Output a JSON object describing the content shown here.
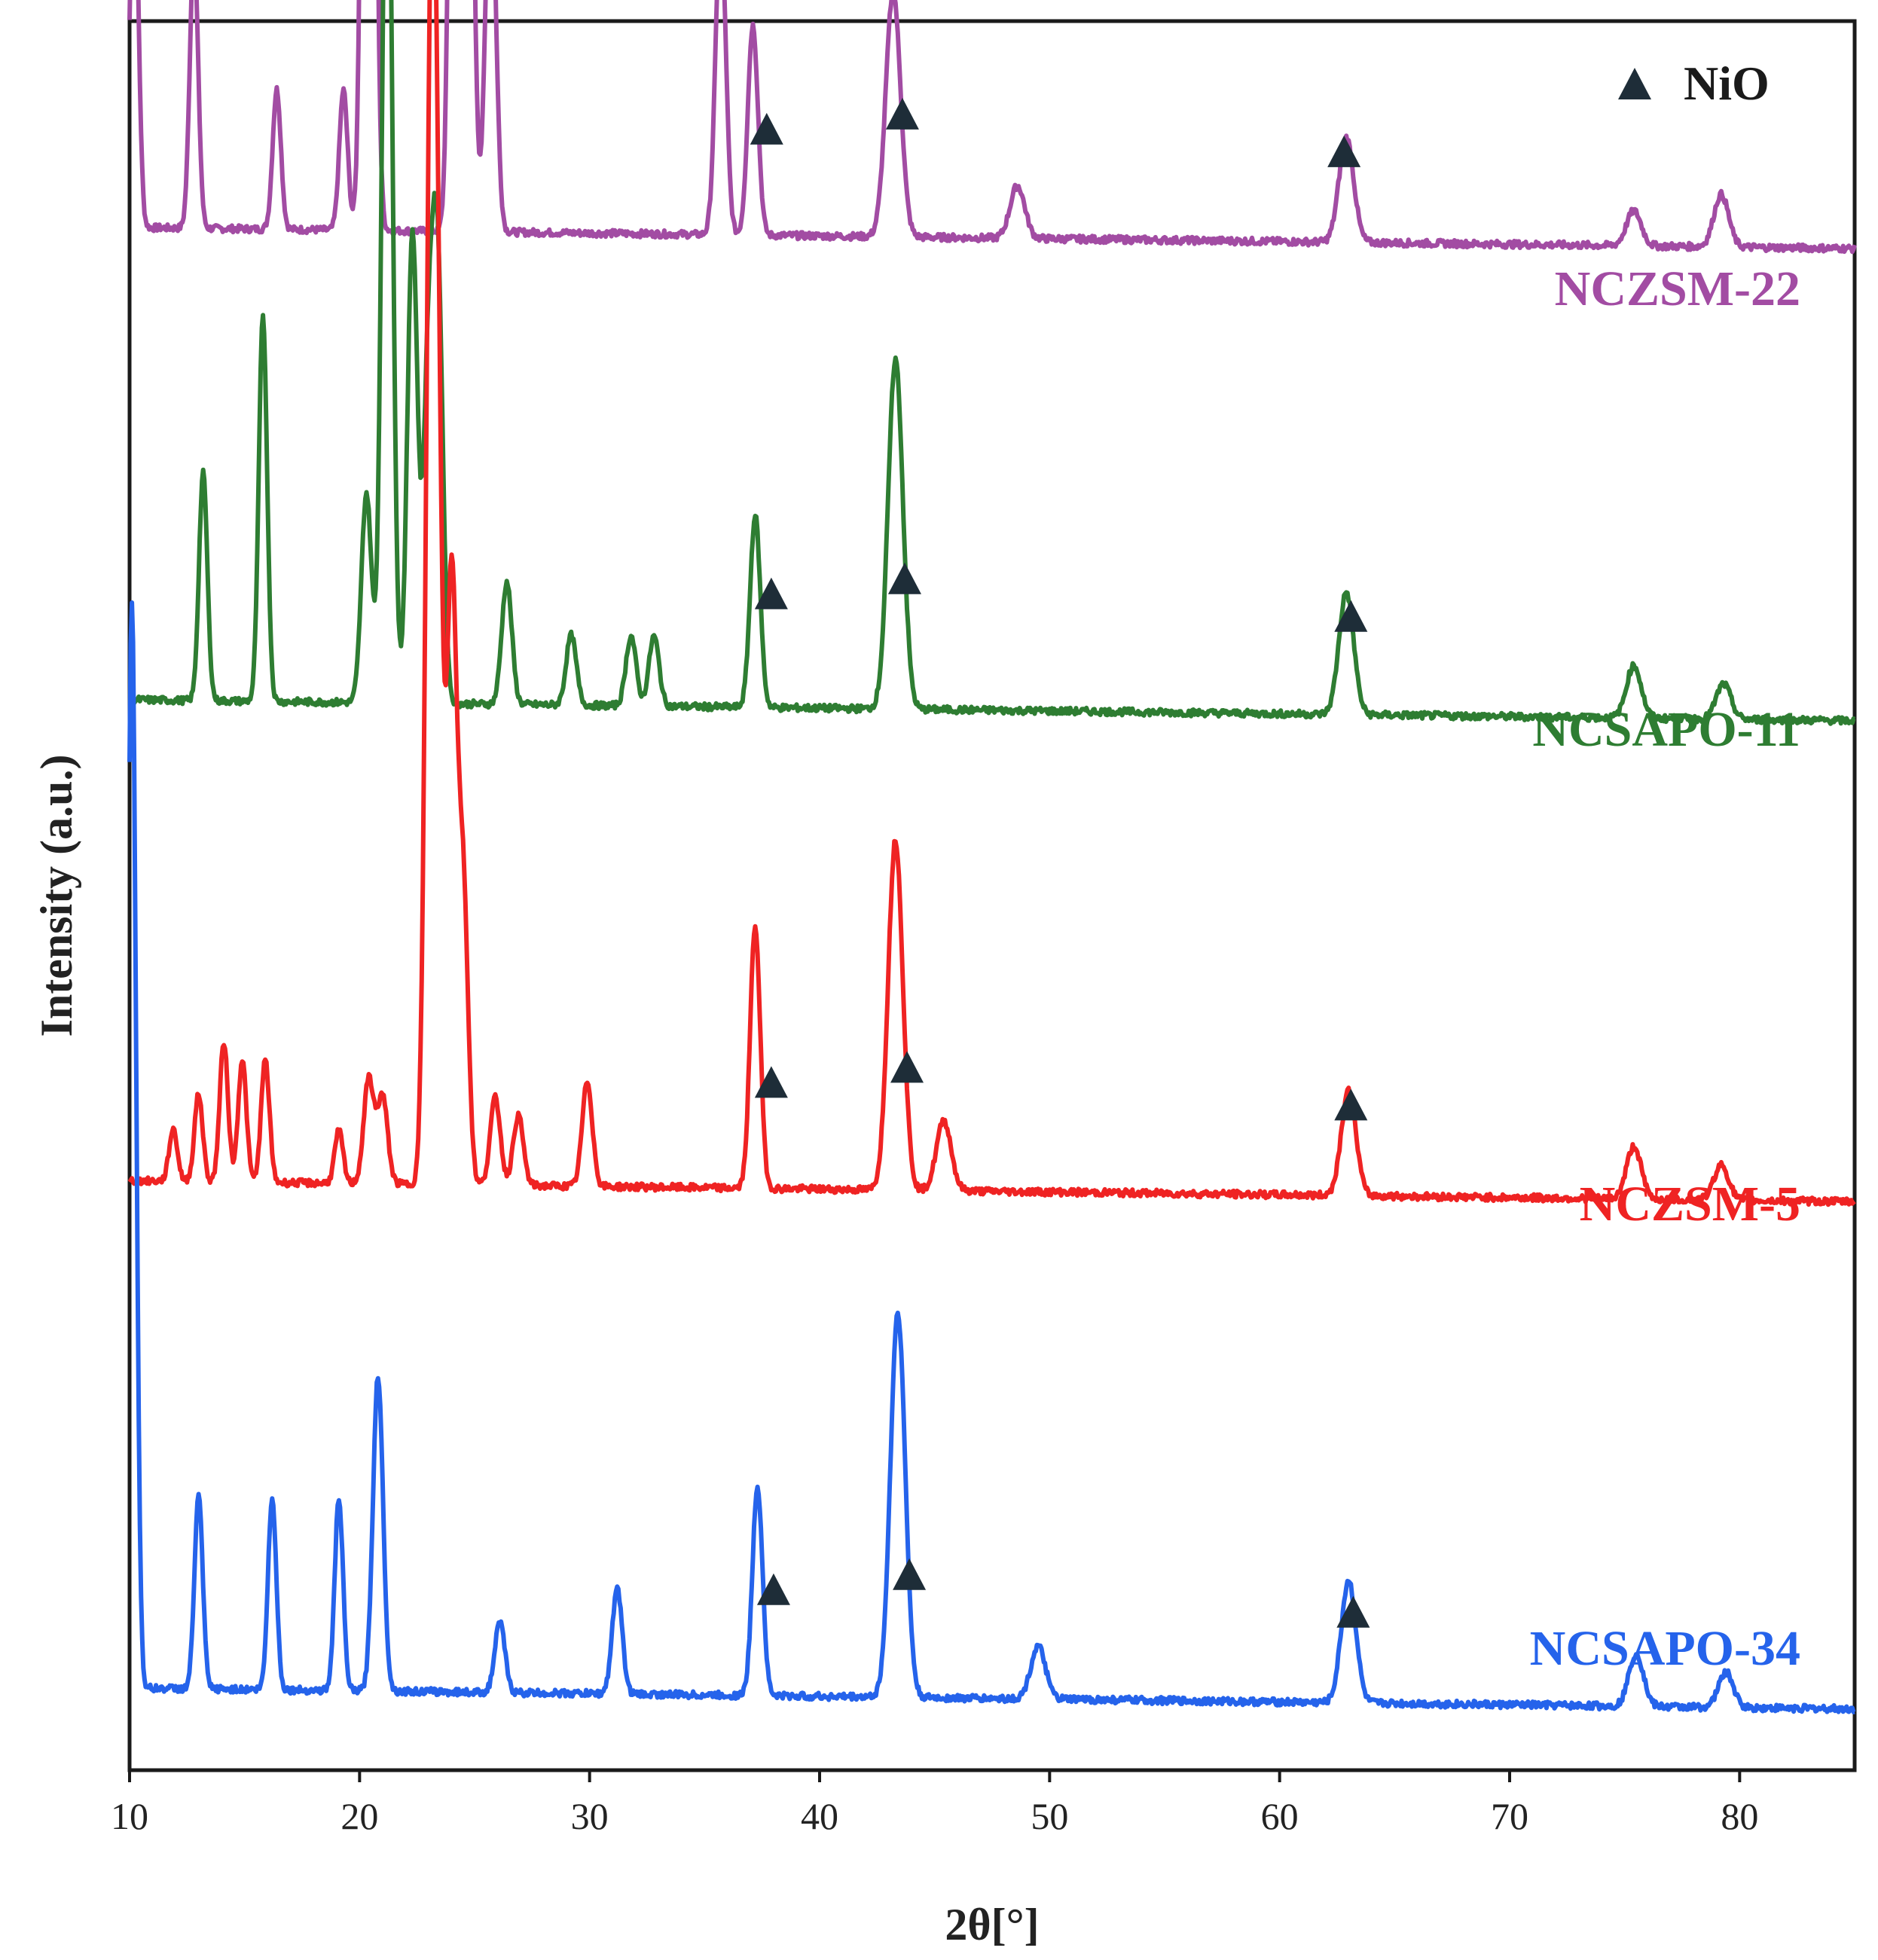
{
  "chart_data": {
    "type": "line",
    "xlabel": "2θ[°]",
    "ylabel": "Intensity (a.u.)",
    "xlim": [
      10,
      85
    ],
    "x_ticks": [
      10,
      20,
      30,
      40,
      50,
      60,
      70,
      80
    ],
    "y_ticks_shown": false,
    "grid": false,
    "legend": {
      "marker": "filled-triangle",
      "label": "NiO",
      "position": "top-right"
    },
    "series": [
      {
        "name": "NCZSM-22",
        "color": "#a24ca3",
        "baseline": 0.87,
        "peaks": [
          [
            10.2,
            0.22
          ],
          [
            12.8,
            0.16
          ],
          [
            16.4,
            0.08
          ],
          [
            19.3,
            0.08
          ],
          [
            20.4,
            0.86
          ],
          [
            24.2,
            0.66
          ],
          [
            24.7,
            0.4
          ],
          [
            25.7,
            0.22
          ],
          [
            35.7,
            0.18
          ],
          [
            37.1,
            0.12
          ],
          [
            43.2,
            0.14
          ],
          [
            48.6,
            0.03
          ],
          [
            62.9,
            0.06
          ],
          [
            75.4,
            0.02
          ],
          [
            79.2,
            0.03
          ]
        ],
        "nio_marker_2theta": [
          37.7,
          43.6,
          62.8
        ]
      },
      {
        "name": "NCSAPO-11",
        "color": "#2e7d32",
        "baseline": 0.6,
        "peaks": [
          [
            13.2,
            0.13
          ],
          [
            15.8,
            0.22
          ],
          [
            20.3,
            0.12
          ],
          [
            21.2,
            0.56
          ],
          [
            22.3,
            0.27
          ],
          [
            23.0,
            0.19
          ],
          [
            23.4,
            0.24
          ],
          [
            26.4,
            0.07
          ],
          [
            29.2,
            0.04
          ],
          [
            31.8,
            0.04
          ],
          [
            32.8,
            0.04
          ],
          [
            37.2,
            0.11
          ],
          [
            43.3,
            0.2
          ],
          [
            62.9,
            0.07
          ],
          [
            75.4,
            0.03
          ],
          [
            79.3,
            0.02
          ]
        ],
        "nio_marker_2theta": [
          37.9,
          43.7,
          63.1
        ]
      },
      {
        "name": "NCZSM-5",
        "color": "#ef2323",
        "baseline": 0.325,
        "peaks": [
          [
            11.9,
            0.03
          ],
          [
            13.0,
            0.05
          ],
          [
            14.1,
            0.08
          ],
          [
            14.9,
            0.07
          ],
          [
            15.9,
            0.07
          ],
          [
            19.1,
            0.03
          ],
          [
            20.4,
            0.06
          ],
          [
            21.0,
            0.05
          ],
          [
            23.1,
            0.6
          ],
          [
            23.4,
            0.35
          ],
          [
            24.0,
            0.34
          ],
          [
            24.5,
            0.17
          ],
          [
            25.9,
            0.05
          ],
          [
            26.9,
            0.04
          ],
          [
            29.9,
            0.06
          ],
          [
            37.2,
            0.15
          ],
          [
            43.3,
            0.2
          ],
          [
            45.4,
            0.04
          ],
          [
            63.0,
            0.06
          ],
          [
            75.4,
            0.03
          ],
          [
            79.2,
            0.02
          ]
        ],
        "nio_marker_2theta": [
          37.9,
          43.8,
          63.1
        ]
      },
      {
        "name": "NCSAPO-34",
        "color": "#2563eb",
        "baseline": 0.035,
        "peaks": [
          [
            10.1,
            0.62
          ],
          [
            13.0,
            0.11
          ],
          [
            16.2,
            0.11
          ],
          [
            19.1,
            0.11
          ],
          [
            20.8,
            0.18
          ],
          [
            26.1,
            0.04
          ],
          [
            31.2,
            0.06
          ],
          [
            37.3,
            0.12
          ],
          [
            43.4,
            0.22
          ],
          [
            49.5,
            0.03
          ],
          [
            63.0,
            0.07
          ],
          [
            75.5,
            0.03
          ],
          [
            79.4,
            0.02
          ]
        ],
        "nio_marker_2theta": [
          38.0,
          43.9,
          63.2
        ]
      }
    ]
  }
}
